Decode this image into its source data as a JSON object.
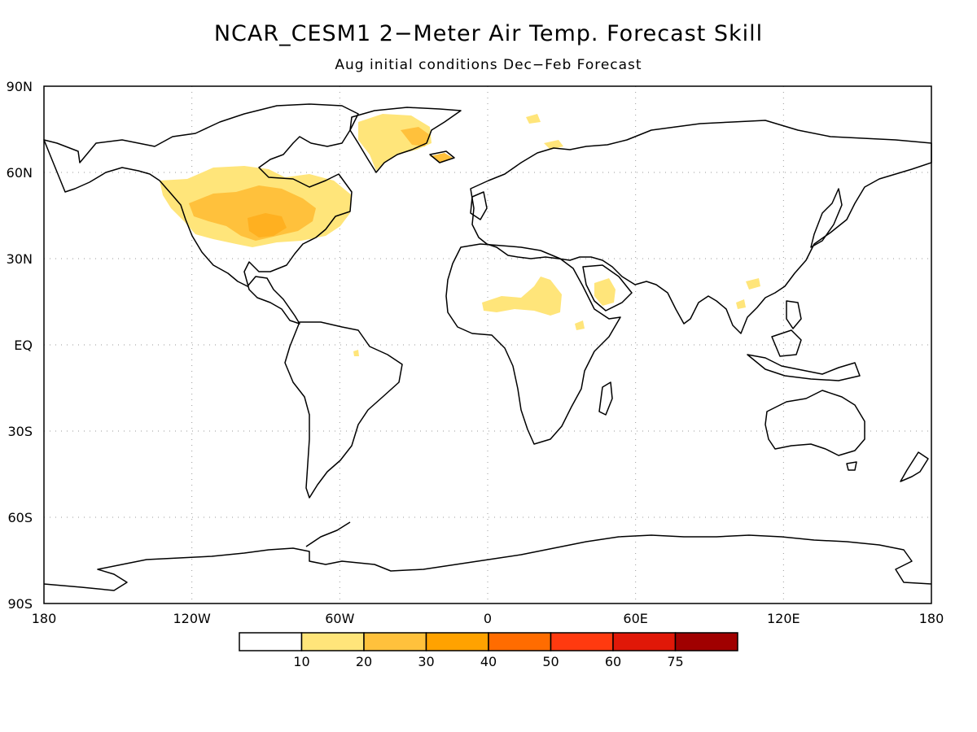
{
  "title": "NCAR_CESM1 2−Meter Air Temp. Forecast Skill",
  "subtitle": "Aug initial conditions   Dec−Feb Forecast",
  "lat_labels": [
    "90N",
    "60N",
    "30N",
    "EQ",
    "30S",
    "60S",
    "90S"
  ],
  "lon_labels": [
    "180",
    "120W",
    "60W",
    "0",
    "60E",
    "120E",
    "180"
  ],
  "colorbar": {
    "colors": [
      "#ffffff",
      "#ffe57a",
      "#ffc13c",
      "#ffa200",
      "#ff6c00",
      "#ff3a0f",
      "#e01808",
      "#a00000"
    ],
    "labels": [
      "10",
      "20",
      "30",
      "40",
      "50",
      "60",
      "75"
    ]
  },
  "grid": "dotted",
  "land_outline_color": "#000000"
}
